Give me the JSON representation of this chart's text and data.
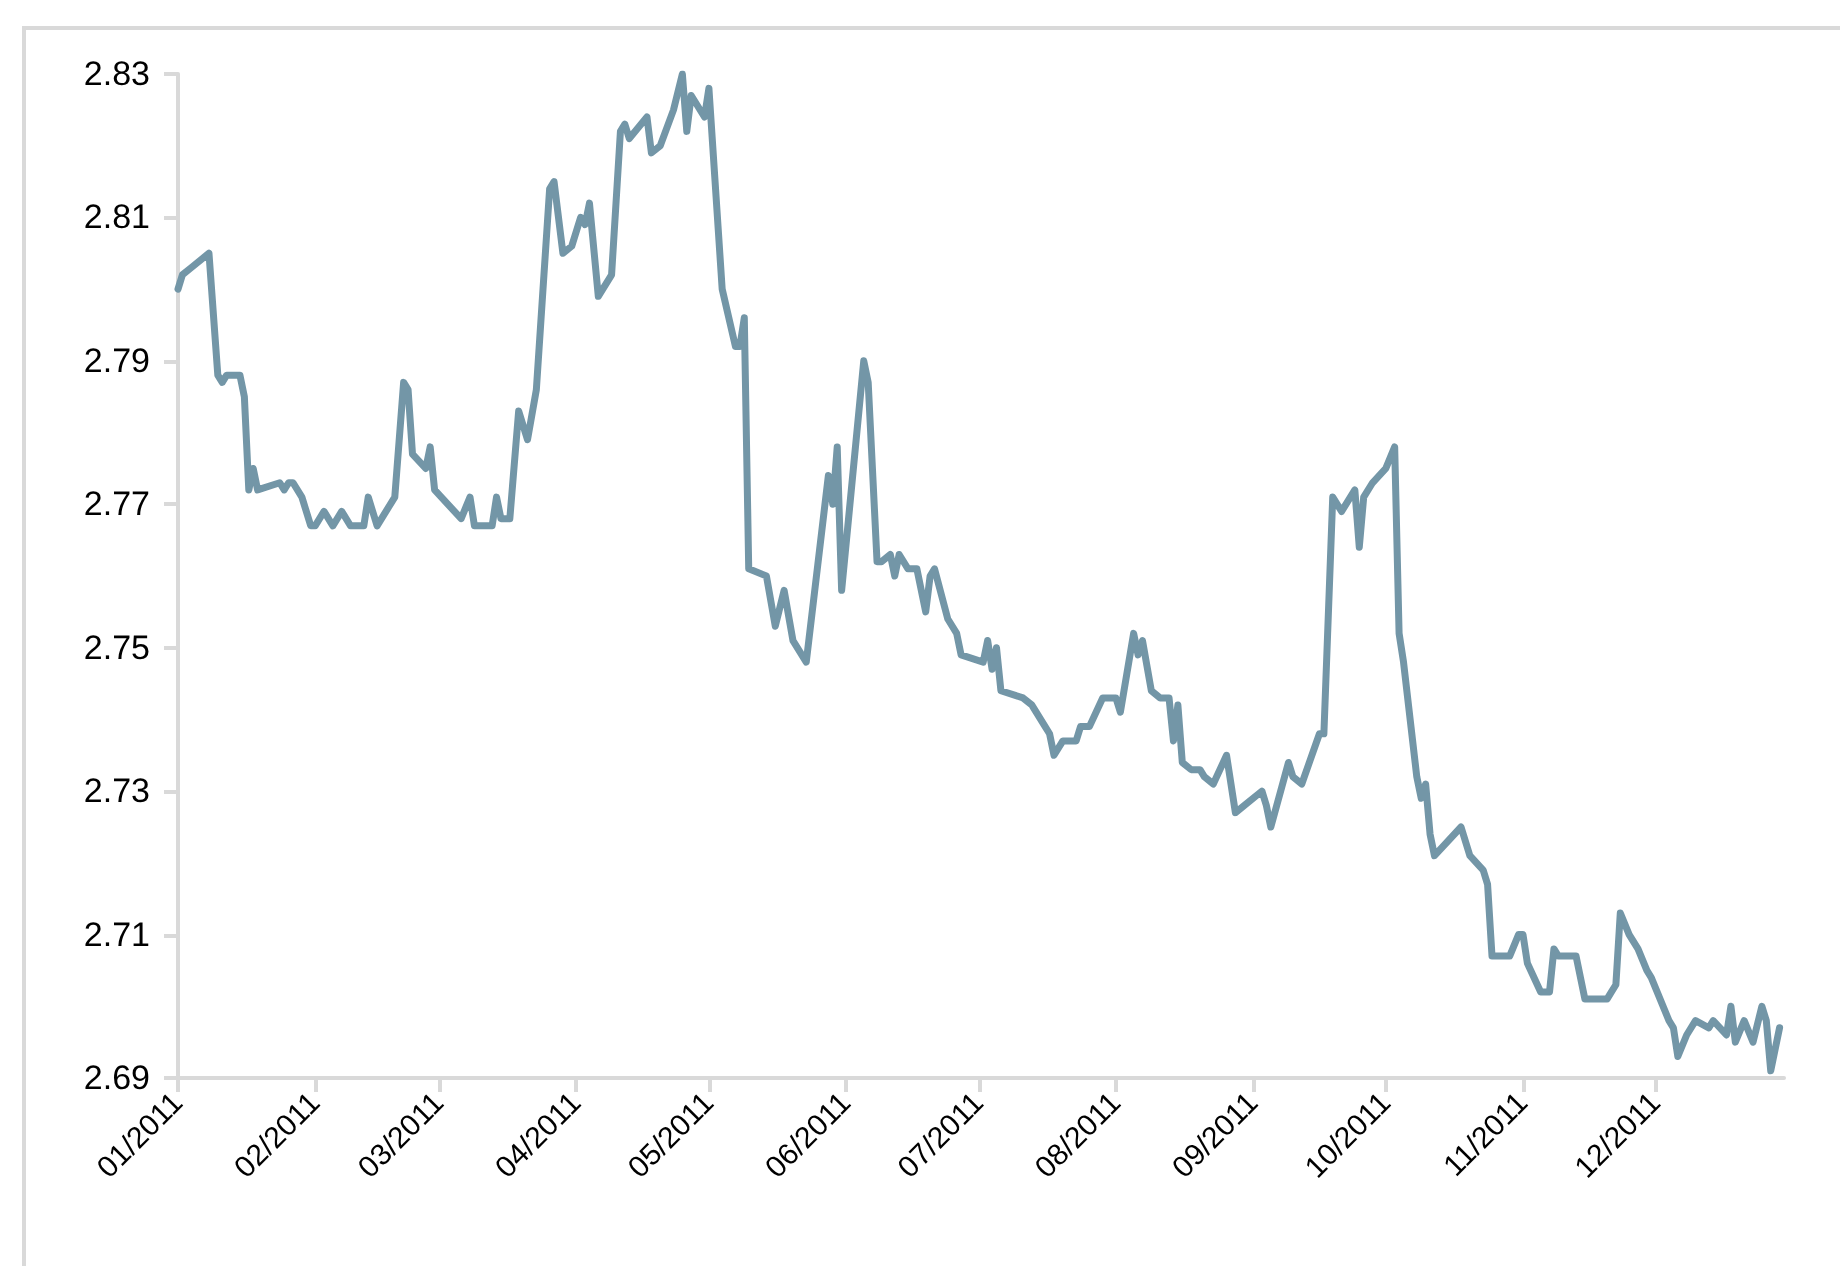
{
  "chart_data": {
    "type": "line",
    "x": [
      "2011-01-01",
      "2011-01-02",
      "2011-01-04",
      "2011-01-08",
      "2011-01-10",
      "2011-01-11",
      "2011-01-12",
      "2011-01-15",
      "2011-01-16",
      "2011-01-17",
      "2011-01-18",
      "2011-01-19",
      "2011-01-24",
      "2011-01-25",
      "2011-01-26",
      "2011-01-27",
      "2011-01-29",
      "2011-01-31",
      "2011-02-01",
      "2011-02-03",
      "2011-02-05",
      "2011-02-07",
      "2011-02-09",
      "2011-02-12",
      "2011-02-13",
      "2011-02-15",
      "2011-02-19",
      "2011-02-21",
      "2011-02-22",
      "2011-02-23",
      "2011-02-26",
      "2011-02-27",
      "2011-02-28",
      "2011-03-06",
      "2011-03-08",
      "2011-03-09",
      "2011-03-13",
      "2011-03-14",
      "2011-03-15",
      "2011-03-17",
      "2011-03-19",
      "2011-03-21",
      "2011-03-23",
      "2011-03-26",
      "2011-03-27",
      "2011-03-29",
      "2011-03-31",
      "2011-04-02",
      "2011-04-03",
      "2011-04-04",
      "2011-04-06",
      "2011-04-09",
      "2011-04-11",
      "2011-04-12",
      "2011-04-13",
      "2011-04-17",
      "2011-04-18",
      "2011-04-20",
      "2011-04-23",
      "2011-04-25",
      "2011-04-26",
      "2011-04-27",
      "2011-04-30",
      "2011-05-01",
      "2011-05-04",
      "2011-05-07",
      "2011-05-08",
      "2011-05-09",
      "2011-05-10",
      "2011-05-14",
      "2011-05-16",
      "2011-05-18",
      "2011-05-20",
      "2011-05-23",
      "2011-05-28",
      "2011-05-29",
      "2011-05-30",
      "2011-05-31",
      "2011-06-05",
      "2011-06-06",
      "2011-06-08",
      "2011-06-09",
      "2011-06-11",
      "2011-06-12",
      "2011-06-13",
      "2011-06-15",
      "2011-06-17",
      "2011-06-19",
      "2011-06-20",
      "2011-06-21",
      "2011-06-24",
      "2011-06-26",
      "2011-06-27",
      "2011-07-02",
      "2011-07-03",
      "2011-07-04",
      "2011-07-05",
      "2011-07-06",
      "2011-07-11",
      "2011-07-13",
      "2011-07-16",
      "2011-07-17",
      "2011-07-18",
      "2011-07-20",
      "2011-07-23",
      "2011-07-24",
      "2011-07-26",
      "2011-07-29",
      "2011-08-01",
      "2011-08-02",
      "2011-08-05",
      "2011-08-06",
      "2011-08-07",
      "2011-08-09",
      "2011-08-11",
      "2011-08-13",
      "2011-08-14",
      "2011-08-15",
      "2011-08-16",
      "2011-08-18",
      "2011-08-20",
      "2011-08-21",
      "2011-08-23",
      "2011-08-26",
      "2011-08-28",
      "2011-08-30",
      "2011-09-03",
      "2011-09-04",
      "2011-09-05",
      "2011-09-09",
      "2011-09-10",
      "2011-09-12",
      "2011-09-16",
      "2011-09-17",
      "2011-09-19",
      "2011-09-21",
      "2011-09-24",
      "2011-09-25",
      "2011-09-26",
      "2011-09-28",
      "2011-10-01",
      "2011-10-03",
      "2011-10-04",
      "2011-10-05",
      "2011-10-08",
      "2011-10-09",
      "2011-10-10",
      "2011-10-11",
      "2011-10-12",
      "2011-10-18",
      "2011-10-20",
      "2011-10-23",
      "2011-10-24",
      "2011-10-25",
      "2011-10-29",
      "2011-10-31",
      "2011-11-01",
      "2011-11-02",
      "2011-11-05",
      "2011-11-07",
      "2011-11-08",
      "2011-11-09",
      "2011-11-12",
      "2011-11-13",
      "2011-11-15",
      "2011-11-20",
      "2011-11-21",
      "2011-11-22",
      "2011-11-23",
      "2011-11-25",
      "2011-11-27",
      "2011-11-29",
      "2011-11-30",
      "2011-12-04",
      "2011-12-05",
      "2011-12-06",
      "2011-12-08",
      "2011-12-10",
      "2011-12-13",
      "2011-12-14",
      "2011-12-17",
      "2011-12-18",
      "2011-12-19",
      "2011-12-21",
      "2011-12-23",
      "2011-12-25",
      "2011-12-26",
      "2011-12-27",
      "2011-12-29"
    ],
    "series": [
      {
        "color": "#7396a7",
        "values": [
          2.8,
          2.802,
          2.803,
          2.805,
          2.788,
          2.787,
          2.788,
          2.788,
          2.785,
          2.772,
          2.775,
          2.772,
          2.773,
          2.772,
          2.773,
          2.773,
          2.771,
          2.767,
          2.767,
          2.769,
          2.767,
          2.769,
          2.767,
          2.767,
          2.771,
          2.767,
          2.771,
          2.787,
          2.786,
          2.777,
          2.775,
          2.778,
          2.772,
          2.768,
          2.771,
          2.767,
          2.767,
          2.771,
          2.768,
          2.768,
          2.783,
          2.779,
          2.786,
          2.814,
          2.815,
          2.805,
          2.806,
          2.81,
          2.809,
          2.812,
          2.799,
          2.802,
          2.822,
          2.823,
          2.821,
          2.824,
          2.819,
          2.82,
          2.825,
          2.83,
          2.822,
          2.827,
          2.824,
          2.828,
          2.8,
          2.792,
          2.792,
          2.796,
          2.761,
          2.76,
          2.753,
          2.758,
          2.751,
          2.748,
          2.774,
          2.77,
          2.778,
          2.758,
          2.79,
          2.787,
          2.762,
          2.762,
          2.763,
          2.76,
          2.763,
          2.761,
          2.761,
          2.755,
          2.76,
          2.761,
          2.754,
          2.752,
          2.749,
          2.748,
          2.751,
          2.747,
          2.75,
          2.744,
          2.743,
          2.742,
          2.739,
          2.738,
          2.735,
          2.737,
          2.737,
          2.739,
          2.739,
          2.743,
          2.743,
          2.741,
          2.752,
          2.749,
          2.751,
          2.744,
          2.743,
          2.743,
          2.737,
          2.742,
          2.734,
          2.733,
          2.733,
          2.732,
          2.731,
          2.735,
          2.727,
          2.728,
          2.73,
          2.728,
          2.725,
          2.734,
          2.732,
          2.731,
          2.738,
          2.738,
          2.771,
          2.769,
          2.772,
          2.764,
          2.771,
          2.773,
          2.775,
          2.778,
          2.752,
          2.748,
          2.732,
          2.729,
          2.731,
          2.724,
          2.721,
          2.725,
          2.721,
          2.719,
          2.717,
          2.707,
          2.707,
          2.71,
          2.71,
          2.706,
          2.702,
          2.702,
          2.708,
          2.707,
          2.707,
          2.707,
          2.701,
          2.701,
          2.702,
          2.703,
          2.713,
          2.71,
          2.708,
          2.705,
          2.704,
          2.698,
          2.697,
          2.693,
          2.696,
          2.698,
          2.697,
          2.698,
          2.696,
          2.7,
          2.695,
          2.698,
          2.695,
          2.7,
          2.698,
          2.691,
          2.697
        ]
      }
    ],
    "xlim": [
      "2011-01-01",
      "2011-12-30"
    ],
    "xticks": [
      {
        "value": "2011-01-01",
        "label": "01/2011"
      },
      {
        "value": "2011-02-01",
        "label": "02/2011"
      },
      {
        "value": "2011-03-01",
        "label": "03/2011"
      },
      {
        "value": "2011-04-01",
        "label": "04/2011"
      },
      {
        "value": "2011-05-01",
        "label": "05/2011"
      },
      {
        "value": "2011-06-01",
        "label": "06/2011"
      },
      {
        "value": "2011-07-01",
        "label": "07/2011"
      },
      {
        "value": "2011-08-01",
        "label": "08/2011"
      },
      {
        "value": "2011-09-01",
        "label": "09/2011"
      },
      {
        "value": "2011-10-01",
        "label": "10/2011"
      },
      {
        "value": "2011-11-01",
        "label": "11/2011"
      },
      {
        "value": "2011-12-01",
        "label": "12/2011"
      }
    ],
    "ylim": [
      2.69,
      2.83
    ],
    "yticks": [
      2.69,
      2.71,
      2.73,
      2.75,
      2.77,
      2.79,
      2.81,
      2.83
    ],
    "grid": false,
    "marker": "none",
    "line_style": "solid"
  }
}
